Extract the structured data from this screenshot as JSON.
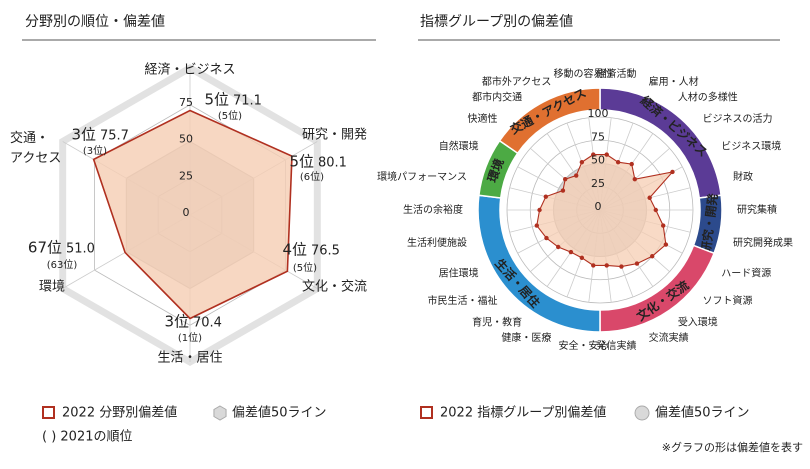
{
  "chart_data": [
    {
      "type": "radar",
      "title": "分野別の順位・偏差値",
      "categories": [
        "経済・ビジネス",
        "研究・開発",
        "文化・交流",
        "生活・居住",
        "環境",
        "交通・アクセス"
      ],
      "label_colors": [
        "#222222",
        "#222222",
        "#c0392b",
        "#1f5fa8",
        "#3a8a2a",
        "#c0392b"
      ],
      "series": [
        {
          "name": "2022 分野別偏差値",
          "color": "#b03020",
          "fill": "#f5cdb3",
          "values": [
            71.1,
            80.1,
            76.5,
            70.4,
            51.0,
            75.7
          ],
          "value_labels": [
            "71.1",
            "80.1",
            "76.5",
            "70.4",
            "51.0",
            "75.7"
          ],
          "ranks": [
            "5位",
            "5位",
            "4位",
            "3位",
            "67位",
            "3位"
          ],
          "prev_ranks": [
            "(5位)",
            "(6位)",
            "(5位)",
            "(1位)",
            "(63位)",
            "(3位)"
          ]
        }
      ],
      "reference": {
        "name": "偏差値50ライン",
        "value": 50,
        "color": "#d9d9d9"
      },
      "rlim": [
        0,
        100
      ],
      "rticks": [
        0,
        25,
        50,
        75
      ],
      "note": "( ) 2021の順位"
    },
    {
      "type": "radar",
      "title": "指標グループ別の偏差値",
      "series": [
        {
          "name": "2022 指標グループ別偏差値",
          "color": "#b03020",
          "fill": "#f5cdb3"
        }
      ],
      "groups": [
        {
          "name": "経済・ビジネス",
          "color": "#5b3b96",
          "categories": [
            "経済活動",
            "雇用・人材",
            "人材の多様性",
            "ビジネスの活力",
            "ビジネス環境",
            "財政"
          ],
          "values": [
            60,
            55,
            60,
            50,
            88,
            55
          ]
        },
        {
          "name": "研究・開発",
          "color": "#2c4a8c",
          "categories": [
            "研究集積",
            "研究開発成果"
          ],
          "values": [
            60,
            70
          ]
        },
        {
          "name": "文化・交流",
          "color": "#d9486a",
          "categories": [
            "ハード資源",
            "ソフト資源",
            "受入環境",
            "交流実績",
            "発信実績"
          ],
          "values": [
            80,
            75,
            70,
            65,
            60
          ]
        },
        {
          "name": "生活・居住",
          "color": "#2b8fcf",
          "categories": [
            "安全・安心",
            "健康・医療",
            "育児・教育",
            "市民生活・福祉",
            "居住環境",
            "生活利便施設",
            "生活の余裕度"
          ],
          "values": [
            60,
            55,
            55,
            60,
            65,
            70,
            65
          ]
        },
        {
          "name": "環境",
          "color": "#4caa44",
          "categories": [
            "環境パフォーマンス",
            "自然環境"
          ],
          "values": [
            60,
            45
          ]
        },
        {
          "name": "交通・アクセス",
          "color": "#e07030",
          "categories": [
            "快適性",
            "都市内交通",
            "都市外アクセス",
            "移動の容易性"
          ],
          "values": [
            50,
            45,
            55,
            60
          ]
        }
      ],
      "reference": {
        "name": "偏差値50ライン",
        "value": 50,
        "color": "#d9d9d9"
      },
      "rlim": [
        0,
        100
      ],
      "rticks": [
        0,
        25,
        50,
        75,
        100
      ],
      "footnote": "※グラフの形は偏差値を表す"
    }
  ]
}
